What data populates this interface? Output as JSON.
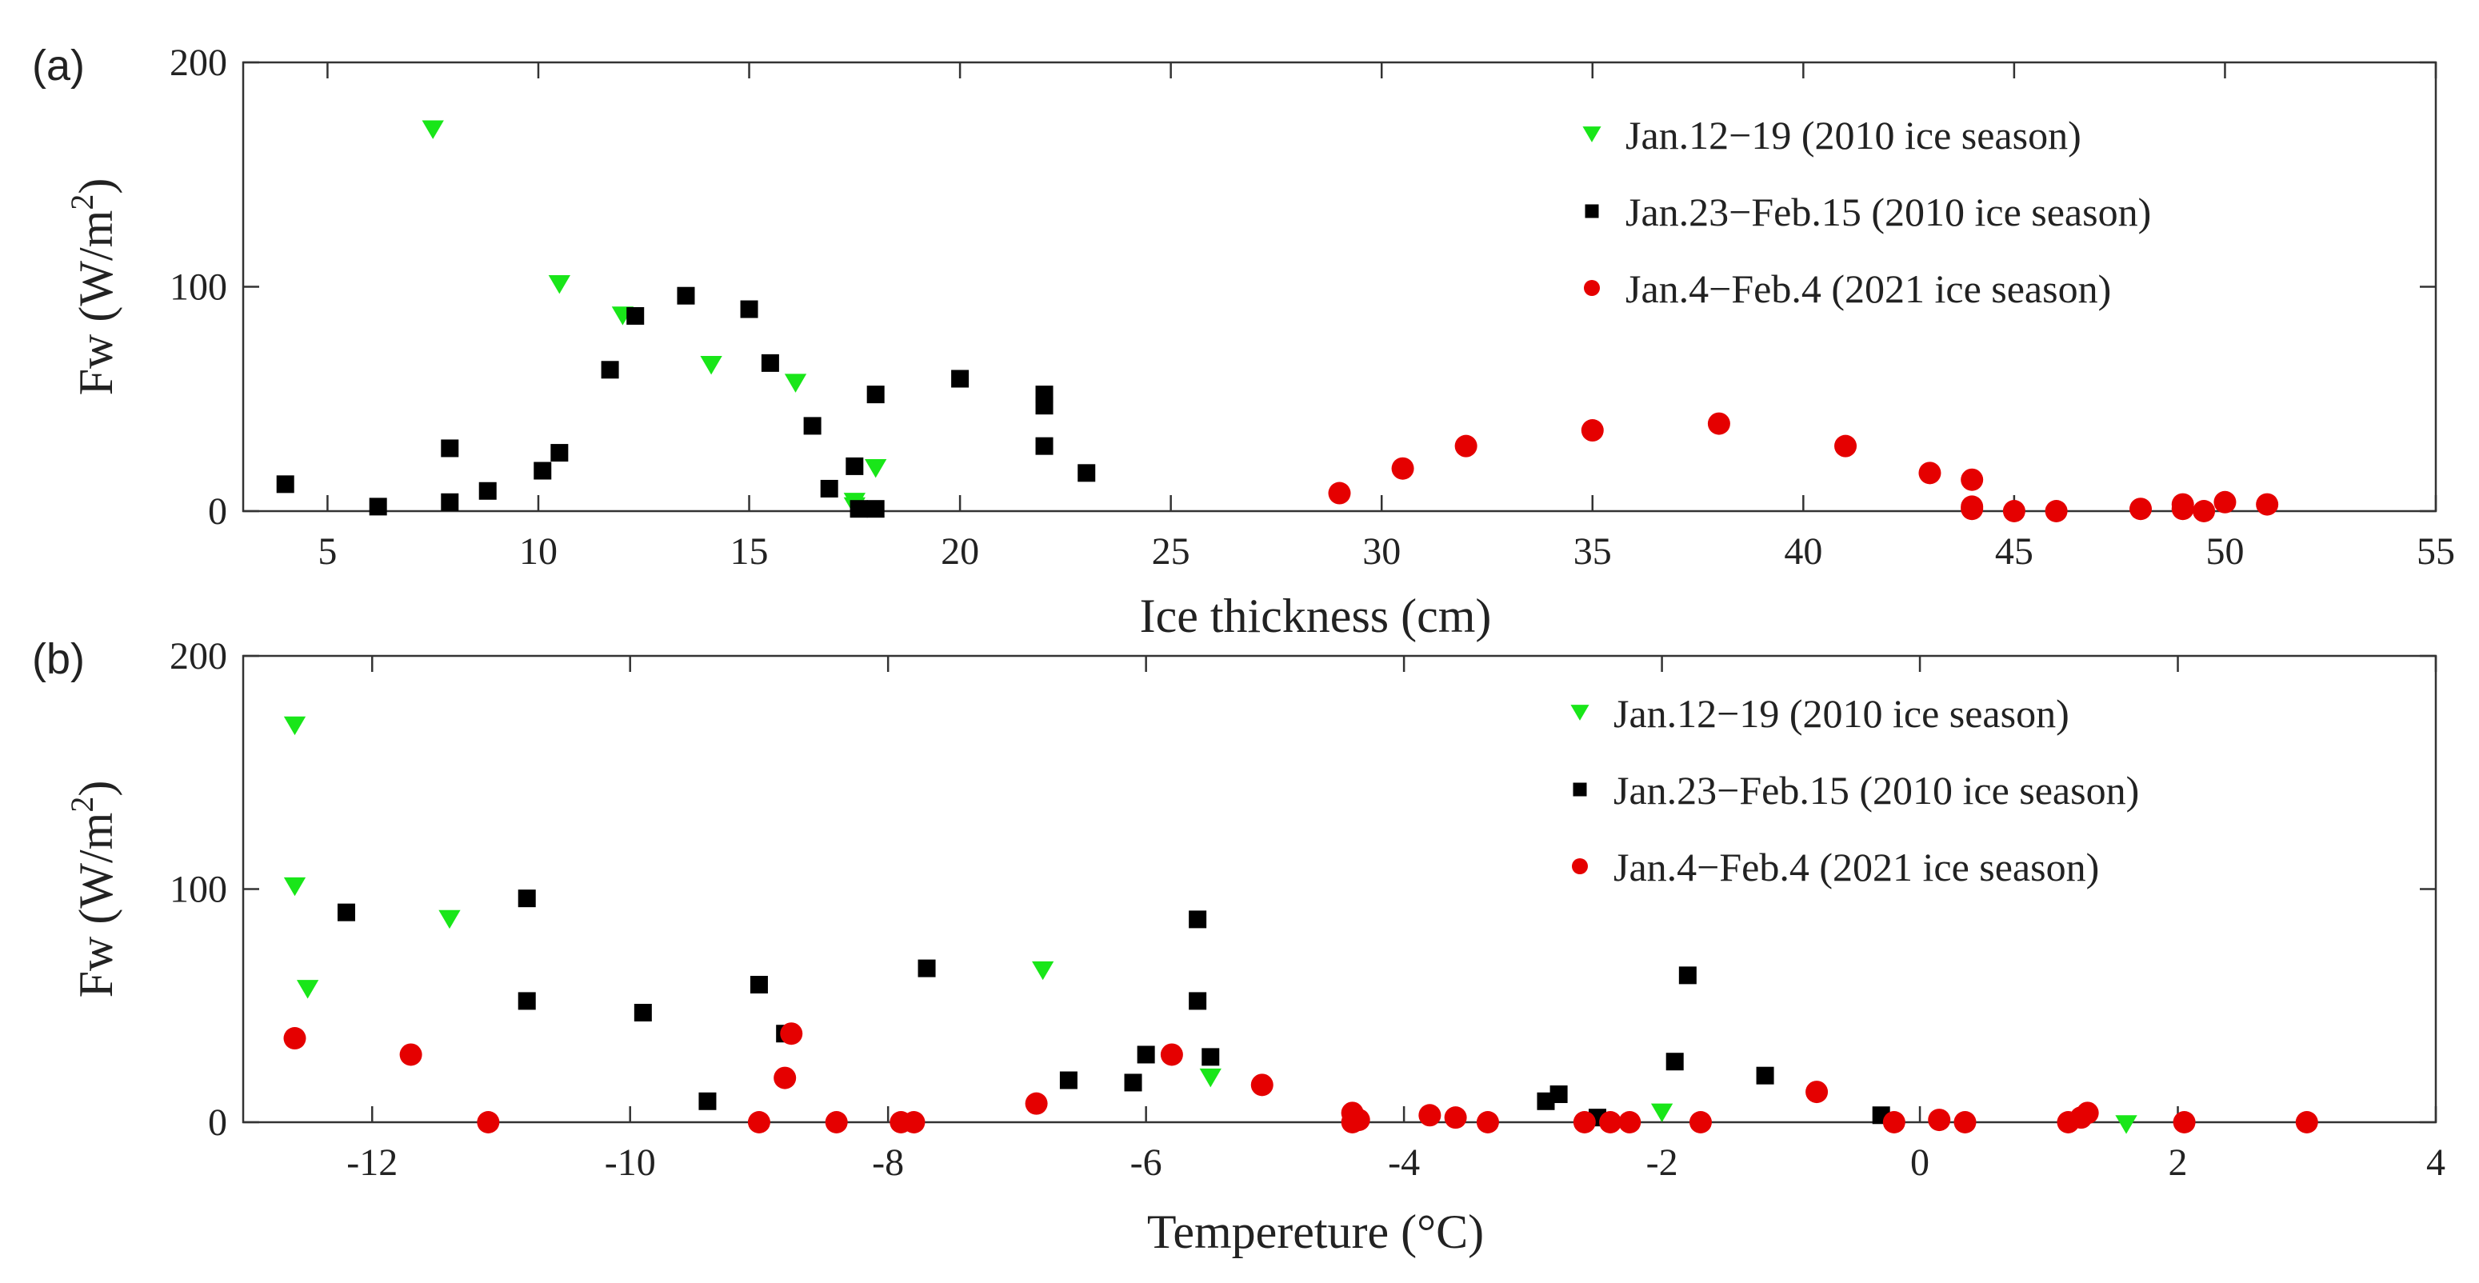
{
  "chart_data": [
    {
      "type": "scatter",
      "panel_label": "(a)",
      "xlabel": "Ice thickness (cm)",
      "ylabel": "Fw (W/m",
      "ylabel_sup": "2",
      "ylabel_end": ")",
      "xlim": [
        3,
        55
      ],
      "ylim": [
        0,
        200
      ],
      "xticks": [
        "5",
        "10",
        "15",
        "20",
        "25",
        "30",
        "35",
        "40",
        "45",
        "50",
        "55"
      ],
      "yticks": [
        "0",
        "100",
        "200"
      ],
      "legend_position": "top-right",
      "series": [
        {
          "name": "Jan.12−19 (2010 ice season)",
          "marker": "triangle-down",
          "color": "#19e619",
          "points": [
            [
              7.5,
              170
            ],
            [
              10.5,
              101
            ],
            [
              12,
              87
            ],
            [
              14.1,
              65
            ],
            [
              16.1,
              57
            ],
            [
              18,
              19
            ],
            [
              17.5,
              4
            ],
            [
              17.5,
              2
            ]
          ]
        },
        {
          "name": "Jan.23−Feb.15 (2010 ice season)",
          "marker": "square",
          "color": "#000000",
          "points": [
            [
              4,
              12
            ],
            [
              6.2,
              2
            ],
            [
              7.9,
              28
            ],
            [
              7.9,
              4
            ],
            [
              8.8,
              9
            ],
            [
              10.1,
              18
            ],
            [
              10.5,
              26
            ],
            [
              11.7,
              63
            ],
            [
              12.3,
              87
            ],
            [
              13.5,
              96
            ],
            [
              15,
              90
            ],
            [
              15.5,
              66
            ],
            [
              16.5,
              38
            ],
            [
              16.9,
              10
            ],
            [
              17.5,
              20
            ],
            [
              18,
              52
            ],
            [
              17.6,
              1
            ],
            [
              18,
              1
            ],
            [
              20,
              59
            ],
            [
              22,
              52
            ],
            [
              22,
              47
            ],
            [
              22,
              29
            ],
            [
              23,
              17
            ]
          ]
        },
        {
          "name": "Jan.4−Feb.4 (2021 ice season)",
          "marker": "circle",
          "color": "#e50000",
          "points": [
            [
              29,
              8
            ],
            [
              30.5,
              19
            ],
            [
              32,
              29
            ],
            [
              35,
              36
            ],
            [
              38,
              39
            ],
            [
              41,
              29
            ],
            [
              43,
              17
            ],
            [
              44,
              14
            ],
            [
              44,
              2
            ],
            [
              44,
              1
            ],
            [
              45,
              0
            ],
            [
              46,
              0
            ],
            [
              48,
              1
            ],
            [
              49,
              3
            ],
            [
              49,
              1
            ],
            [
              49.5,
              0
            ],
            [
              50,
              4
            ],
            [
              51,
              3
            ]
          ]
        }
      ]
    },
    {
      "type": "scatter",
      "panel_label": "(b)",
      "xlabel": "Tempereture (°C)",
      "ylabel": "Fw (W/m",
      "ylabel_sup": "2",
      "ylabel_end": ")",
      "xlim": [
        -13,
        4
      ],
      "ylim": [
        0,
        200
      ],
      "xticks": [
        "-12",
        "-10",
        "-8",
        "-6",
        "-4",
        "-2",
        "0",
        "2",
        "4"
      ],
      "yticks": [
        "0",
        "100",
        "200"
      ],
      "legend_position": "top-right",
      "series": [
        {
          "name": "Jan.12−19 (2010 ice season)",
          "marker": "triangle-down",
          "color": "#19e619",
          "points": [
            [
              -12.6,
              170
            ],
            [
              -12.6,
              101
            ],
            [
              -12.5,
              57
            ],
            [
              -11.4,
              87
            ],
            [
              -6.8,
              65
            ],
            [
              -5.5,
              19
            ],
            [
              -2,
              4
            ],
            [
              1.6,
              -1
            ]
          ]
        },
        {
          "name": "Jan.23−Feb.15 (2010 ice season)",
          "marker": "square",
          "color": "#000000",
          "points": [
            [
              -12.2,
              90
            ],
            [
              -10.8,
              96
            ],
            [
              -10.8,
              52
            ],
            [
              -9.9,
              47
            ],
            [
              -9.4,
              9
            ],
            [
              -9,
              59
            ],
            [
              -8.8,
              38
            ],
            [
              -7.7,
              66
            ],
            [
              -6.6,
              18
            ],
            [
              -6.1,
              17
            ],
            [
              -6,
              29
            ],
            [
              -5.6,
              52
            ],
            [
              -5.6,
              87
            ],
            [
              -5.5,
              28
            ],
            [
              -2.9,
              9
            ],
            [
              -2.8,
              12
            ],
            [
              -2.5,
              2
            ],
            [
              -1.9,
              26
            ],
            [
              -1.8,
              63
            ],
            [
              -1.2,
              20
            ],
            [
              -0.3,
              3
            ]
          ]
        },
        {
          "name": "Jan.4−Feb.4 (2021 ice season)",
          "marker": "circle",
          "color": "#e50000",
          "points": [
            [
              -12.6,
              36
            ],
            [
              -11.7,
              29
            ],
            [
              -11.1,
              0
            ],
            [
              -9,
              0
            ],
            [
              -8.8,
              19
            ],
            [
              -8.75,
              38
            ],
            [
              -8.4,
              0
            ],
            [
              -7.9,
              0
            ],
            [
              -7.8,
              0
            ],
            [
              -6.85,
              8
            ],
            [
              -5.8,
              29
            ],
            [
              -5.1,
              16
            ],
            [
              -4.4,
              4
            ],
            [
              -4.4,
              0
            ],
            [
              -4.35,
              1
            ],
            [
              -3.8,
              3
            ],
            [
              -3.6,
              2
            ],
            [
              -3.35,
              0
            ],
            [
              -2.6,
              0
            ],
            [
              -2.4,
              0
            ],
            [
              -2.25,
              0
            ],
            [
              -1.7,
              0
            ],
            [
              -0.8,
              13
            ],
            [
              -0.2,
              0
            ],
            [
              0.15,
              1
            ],
            [
              0.35,
              0
            ],
            [
              1.15,
              0
            ],
            [
              1.25,
              2
            ],
            [
              1.3,
              4
            ],
            [
              2.05,
              0
            ],
            [
              3,
              0
            ]
          ]
        }
      ]
    }
  ]
}
